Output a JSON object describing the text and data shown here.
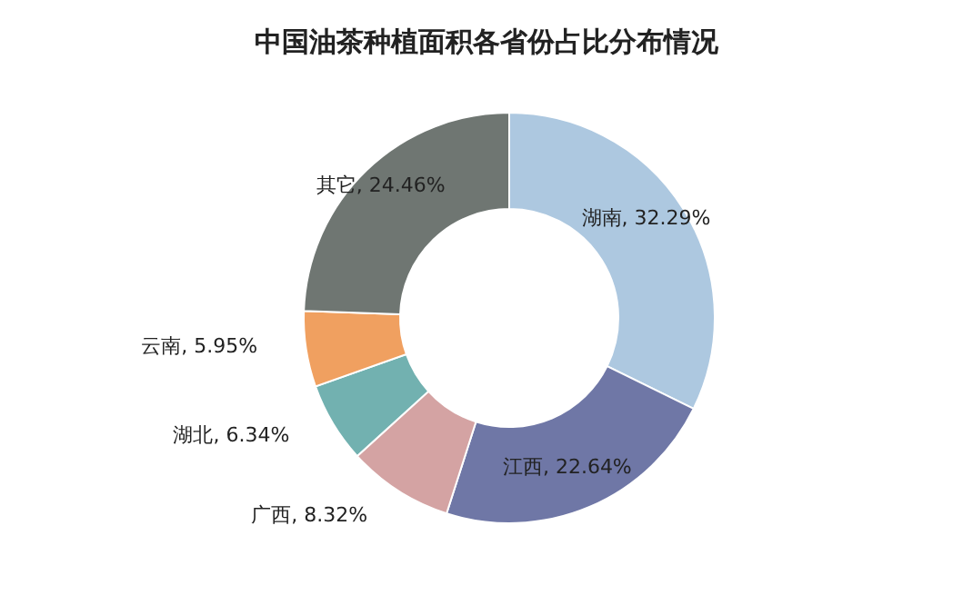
{
  "chart_data": {
    "type": "donut",
    "title": "中国油茶种植面积各省份占比分布情况",
    "categories": [
      "湖南",
      "江西",
      "广西",
      "湖北",
      "云南",
      "其它"
    ],
    "values": [
      32.29,
      22.64,
      8.32,
      6.34,
      5.95,
      24.46
    ],
    "value_labels": [
      "32.29%",
      "22.64%",
      "8.32%",
      "6.34%",
      "5.95%",
      "24.46%"
    ],
    "colors": [
      "#adc8e0",
      "#6f77a6",
      "#d4a3a3",
      "#72b1b0",
      "#f0a060",
      "#6f7672"
    ],
    "legend": false
  }
}
